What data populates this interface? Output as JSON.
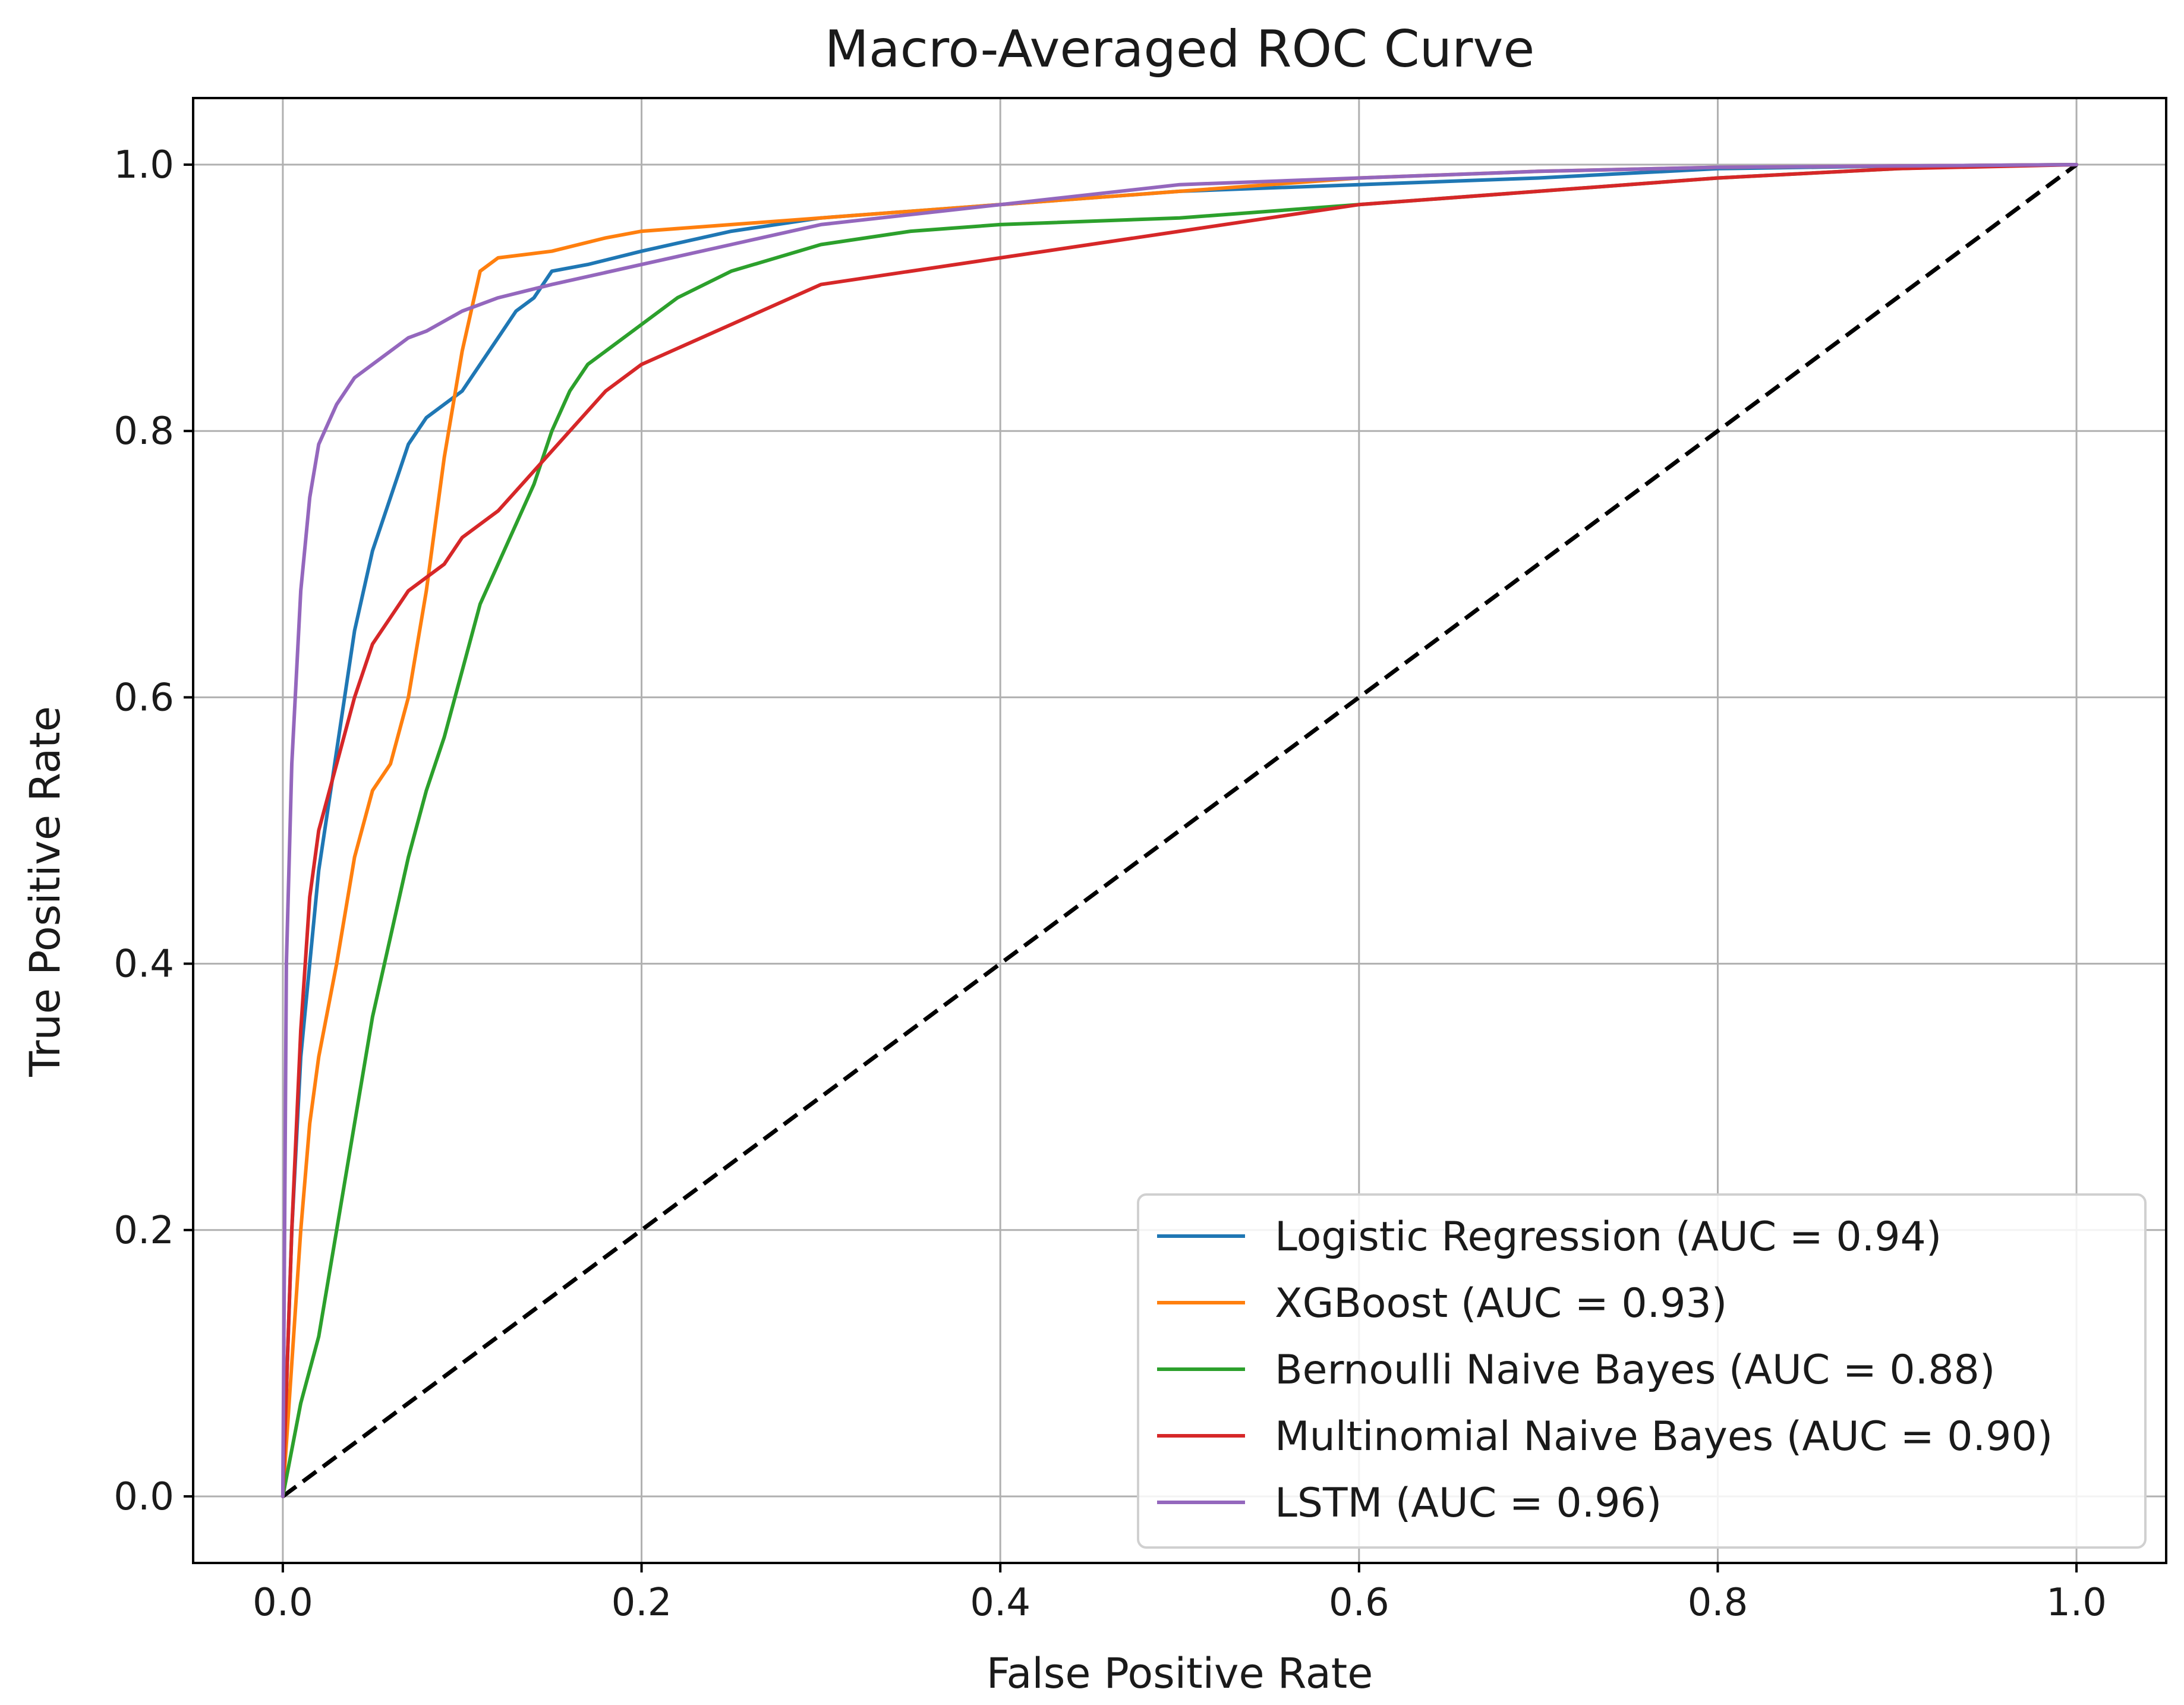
{
  "chart_data": {
    "type": "line",
    "title": "Macro-Averaged ROC Curve",
    "xlabel": "False Positive Rate",
    "ylabel": "True Positive Rate",
    "xlim": [
      -0.05,
      1.05
    ],
    "ylim": [
      -0.05,
      1.05
    ],
    "xticks": [
      0.0,
      0.2,
      0.4,
      0.6,
      0.8,
      1.0
    ],
    "yticks": [
      0.0,
      0.2,
      0.4,
      0.6,
      0.8,
      1.0
    ],
    "xtick_labels": [
      "0.0",
      "0.2",
      "0.4",
      "0.6",
      "0.8",
      "1.0"
    ],
    "ytick_labels": [
      "0.0",
      "0.2",
      "0.4",
      "0.6",
      "0.8",
      "1.0"
    ],
    "grid": true,
    "legend_position": "lower-right",
    "series": [
      {
        "name": "Logistic Regression (AUC = 0.94)",
        "color": "#1f77b4",
        "x": [
          0,
          0.005,
          0.01,
          0.015,
          0.02,
          0.03,
          0.04,
          0.05,
          0.06,
          0.07,
          0.08,
          0.09,
          0.1,
          0.11,
          0.12,
          0.13,
          0.14,
          0.15,
          0.17,
          0.2,
          0.25,
          0.3,
          0.4,
          0.5,
          0.6,
          0.7,
          0.8,
          0.9,
          1.0
        ],
        "y": [
          0,
          0.2,
          0.33,
          0.4,
          0.47,
          0.56,
          0.65,
          0.71,
          0.75,
          0.79,
          0.81,
          0.82,
          0.83,
          0.85,
          0.87,
          0.89,
          0.9,
          0.92,
          0.925,
          0.935,
          0.95,
          0.96,
          0.97,
          0.98,
          0.985,
          0.99,
          0.997,
          0.999,
          1.0
        ]
      },
      {
        "name": "XGBoost (AUC = 0.93)",
        "color": "#ff7f0e",
        "x": [
          0,
          0.005,
          0.01,
          0.015,
          0.02,
          0.03,
          0.04,
          0.05,
          0.06,
          0.07,
          0.08,
          0.09,
          0.1,
          0.11,
          0.12,
          0.15,
          0.18,
          0.2,
          0.3,
          0.4,
          0.5,
          0.6,
          0.7,
          0.8,
          0.9,
          1.0
        ],
        "y": [
          0,
          0.1,
          0.2,
          0.28,
          0.33,
          0.4,
          0.48,
          0.53,
          0.55,
          0.6,
          0.68,
          0.78,
          0.86,
          0.92,
          0.93,
          0.935,
          0.945,
          0.95,
          0.96,
          0.97,
          0.98,
          0.99,
          0.995,
          0.998,
          0.999,
          1.0
        ]
      },
      {
        "name": "Bernoulli Naive Bayes (AUC = 0.88)",
        "color": "#2ca02c",
        "x": [
          0,
          0.01,
          0.02,
          0.03,
          0.04,
          0.05,
          0.06,
          0.07,
          0.08,
          0.09,
          0.1,
          0.11,
          0.12,
          0.13,
          0.14,
          0.15,
          0.16,
          0.17,
          0.18,
          0.2,
          0.22,
          0.25,
          0.3,
          0.35,
          0.4,
          0.5,
          0.6,
          0.7,
          0.8,
          0.9,
          0.95,
          1.0
        ],
        "y": [
          0,
          0.07,
          0.12,
          0.2,
          0.28,
          0.36,
          0.42,
          0.48,
          0.53,
          0.57,
          0.62,
          0.67,
          0.7,
          0.73,
          0.76,
          0.8,
          0.83,
          0.85,
          0.86,
          0.88,
          0.9,
          0.92,
          0.94,
          0.95,
          0.955,
          0.96,
          0.97,
          0.98,
          0.99,
          0.997,
          0.999,
          1.0
        ]
      },
      {
        "name": "Multinomial Naive Bayes (AUC = 0.90)",
        "color": "#d62728",
        "x": [
          0,
          0.005,
          0.01,
          0.015,
          0.02,
          0.03,
          0.04,
          0.05,
          0.06,
          0.07,
          0.08,
          0.09,
          0.1,
          0.12,
          0.14,
          0.16,
          0.18,
          0.2,
          0.25,
          0.3,
          0.4,
          0.5,
          0.6,
          0.7,
          0.8,
          0.9,
          1.0
        ],
        "y": [
          0,
          0.2,
          0.35,
          0.45,
          0.5,
          0.55,
          0.6,
          0.64,
          0.66,
          0.68,
          0.69,
          0.7,
          0.72,
          0.74,
          0.77,
          0.8,
          0.83,
          0.85,
          0.88,
          0.91,
          0.93,
          0.95,
          0.97,
          0.98,
          0.99,
          0.997,
          1.0
        ]
      },
      {
        "name": "LSTM (AUC = 0.96)",
        "color": "#9467bd",
        "x": [
          0,
          0.002,
          0.005,
          0.01,
          0.015,
          0.02,
          0.03,
          0.04,
          0.05,
          0.07,
          0.08,
          0.1,
          0.12,
          0.15,
          0.2,
          0.25,
          0.3,
          0.4,
          0.5,
          0.6,
          0.7,
          0.8,
          0.9,
          1.0
        ],
        "y": [
          0,
          0.4,
          0.55,
          0.68,
          0.75,
          0.79,
          0.82,
          0.84,
          0.85,
          0.87,
          0.875,
          0.89,
          0.9,
          0.91,
          0.925,
          0.94,
          0.955,
          0.97,
          0.985,
          0.99,
          0.995,
          0.998,
          0.999,
          1.0
        ]
      }
    ],
    "reference_line": {
      "x": [
        0,
        1
      ],
      "y": [
        0,
        1
      ],
      "color": "#000000",
      "style": "dashed"
    }
  }
}
